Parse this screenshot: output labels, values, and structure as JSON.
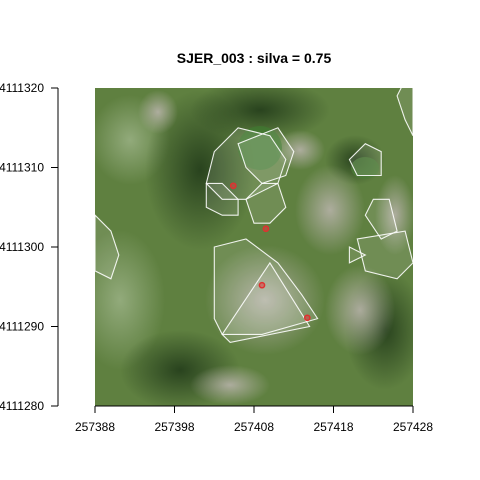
{
  "chart_data": {
    "type": "scatter",
    "title": "SJER_003 : silva = 0.75",
    "xlabel": "",
    "ylabel": "",
    "xlim": [
      257388,
      257428
    ],
    "ylim": [
      4111280,
      4111320
    ],
    "x_ticks": [
      257388,
      257398,
      257408,
      257418,
      257428
    ],
    "y_ticks": [
      4111280,
      4111290,
      4111300,
      4111310,
      4111320
    ],
    "x_tick_labels": [
      "257388",
      "257398",
      "257408",
      "257418",
      "257428"
    ],
    "y_tick_labels": [
      "4111280",
      "4111290",
      "4111300",
      "4111310",
      "4111320"
    ],
    "background": "aerial orthophoto",
    "point_color": "#e03030",
    "crown_outline_color": "#ffffff",
    "series": [
      {
        "points": [
          {
            "x": 257405.4,
            "y": 4111307.7
          },
          {
            "x": 257409.5,
            "y": 4111302.3
          },
          {
            "x": 257409.0,
            "y": 4111295.2
          },
          {
            "x": 257414.7,
            "y": 4111291.1
          }
        ]
      }
    ],
    "crowns": [
      [
        [
          257402,
          4111308
        ],
        [
          257403,
          4111312
        ],
        [
          257406,
          4111315
        ],
        [
          257410,
          4111314
        ],
        [
          257412,
          4111311
        ],
        [
          257411,
          4111308
        ],
        [
          257407,
          4111306
        ],
        [
          257404,
          4111306
        ]
      ],
      [
        [
          257406,
          4111313
        ],
        [
          257407,
          4111310
        ],
        [
          257409,
          4111308
        ],
        [
          257412,
          4111309
        ],
        [
          257413,
          4111312
        ],
        [
          257411,
          4111315
        ]
      ],
      [
        [
          257402,
          4111308
        ],
        [
          257402,
          4111305
        ],
        [
          257404,
          4111304
        ],
        [
          257406,
          4111304
        ],
        [
          257406,
          4111306
        ],
        [
          257404,
          4111308
        ]
      ],
      [
        [
          257407,
          4111306
        ],
        [
          257408,
          4111303
        ],
        [
          257410,
          4111303
        ],
        [
          257412,
          4111305
        ],
        [
          257411,
          4111308
        ],
        [
          257409,
          4111308
        ]
      ],
      [
        [
          257403,
          4111300
        ],
        [
          257403,
          4111291
        ],
        [
          257404,
          4111289
        ],
        [
          257409,
          4111289
        ],
        [
          257416,
          4111291
        ],
        [
          257414,
          4111294
        ],
        [
          257411,
          4111298
        ],
        [
          257407,
          4111301
        ]
      ],
      [
        [
          257404,
          4111289
        ],
        [
          257410,
          4111298
        ],
        [
          257415,
          4111290
        ],
        [
          257405,
          4111288
        ]
      ],
      [
        [
          257388,
          4111304
        ],
        [
          257390,
          4111302
        ],
        [
          257391,
          4111299
        ],
        [
          257390,
          4111296
        ],
        [
          257388,
          4111297
        ]
      ],
      [
        [
          257420,
          4111311
        ],
        [
          257421,
          4111309
        ],
        [
          257424,
          4111309
        ],
        [
          257424,
          4111312
        ],
        [
          257422,
          4111313
        ]
      ],
      [
        [
          257422,
          4111304
        ],
        [
          257423,
          4111306
        ],
        [
          257425,
          4111306
        ],
        [
          257426,
          4111302
        ],
        [
          257424,
          4111301
        ]
      ],
      [
        [
          257421,
          4111301
        ],
        [
          257422,
          4111297
        ],
        [
          257426,
          4111296
        ],
        [
          257428,
          4111298
        ],
        [
          257427,
          4111302
        ]
      ],
      [
        [
          257427,
          4111316
        ],
        [
          257426,
          4111319
        ],
        [
          257427,
          4111321
        ],
        [
          257428,
          4111320
        ],
        [
          257428,
          4111314
        ]
      ],
      [
        [
          257420,
          4111300
        ],
        [
          257420,
          4111298
        ],
        [
          257422,
          4111299
        ]
      ]
    ]
  }
}
